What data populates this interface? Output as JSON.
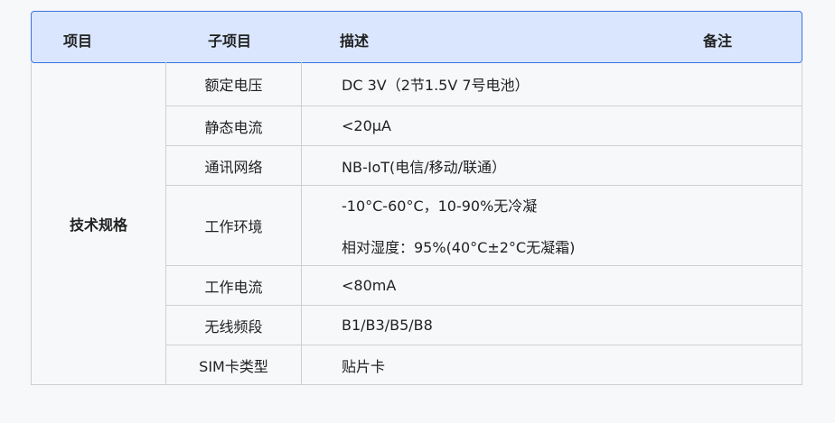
{
  "header": {
    "col1": "项目",
    "col2": "子项目",
    "col3": "描述",
    "col4": "备注"
  },
  "group": "技术规格",
  "rows": [
    {
      "name": "额定电压",
      "desc": [
        "DC 3V（2节1.5V 7号电池）"
      ]
    },
    {
      "name": "静态电流",
      "desc": [
        "<20μA"
      ]
    },
    {
      "name": "通讯网络",
      "desc": [
        "NB-IoT(电信/移动/联通）"
      ]
    },
    {
      "name": "工作环境",
      "desc": [
        "-10°C-60°C，10-90%无冷凝",
        "相对湿度：95%(40°C±2°C无凝霜)"
      ]
    },
    {
      "name": "工作电流",
      "desc": [
        "<80mA"
      ]
    },
    {
      "name": "无线频段",
      "desc": [
        "B1/B3/B5/B8"
      ]
    },
    {
      "name": "SIM卡类型",
      "desc": [
        "贴片卡"
      ]
    }
  ],
  "colors": {
    "header_bg": "#d9e6fd",
    "header_border": "#3a74e0",
    "page_bg": "#f7f8fa"
  }
}
